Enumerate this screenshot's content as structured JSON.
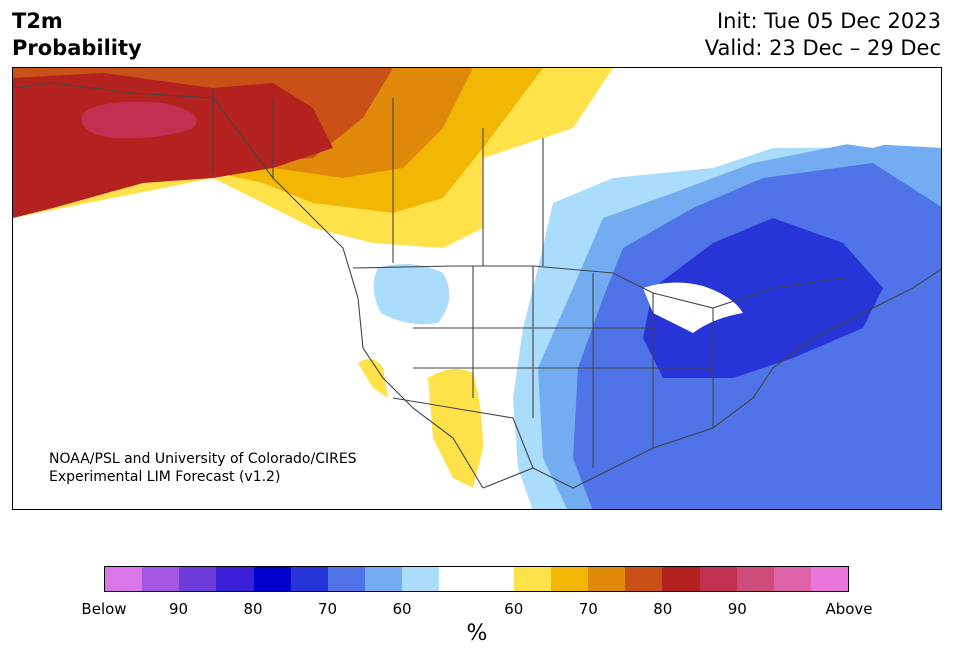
{
  "title": {
    "line1": "T2m",
    "line2": "Probability"
  },
  "dates": {
    "init": "Init: Tue 05 Dec 2023",
    "valid": "Valid: 23 Dec – 29 Dec"
  },
  "credit": {
    "line1": "NOAA/PSL and University of Colorado/CIRES",
    "line2": "Experimental LIM Forecast (v1.2)"
  },
  "colorbar": {
    "colors": [
      "#d977e8",
      "#a555e3",
      "#6f3bda",
      "#3a1fd6",
      "#0000cd",
      "#2634d8",
      "#4f74e8",
      "#74acf2",
      "#aadcfb",
      "#ffffff",
      "#ffffff",
      "#ffe14a",
      "#f2b705",
      "#e08a0c",
      "#c95118",
      "#b3221f",
      "#c13050",
      "#cf4d7a",
      "#de62a8",
      "#ea76dc"
    ],
    "ticks": [
      "Below",
      "90",
      "80",
      "70",
      "60",
      "60",
      "70",
      "80",
      "90",
      "Above"
    ],
    "unit": "%"
  },
  "map_colors": {
    "below_60": "#aadcfb",
    "below_70": "#74acf2",
    "below_80": "#4f74e8",
    "below_85": "#2634d8",
    "above_60": "#ffe14a",
    "above_65": "#f2b705",
    "above_70": "#e08a0c",
    "above_75": "#c95118",
    "above_80": "#b3221f",
    "above_90": "#c13050",
    "water": "#ffffff",
    "border": "#444444"
  }
}
